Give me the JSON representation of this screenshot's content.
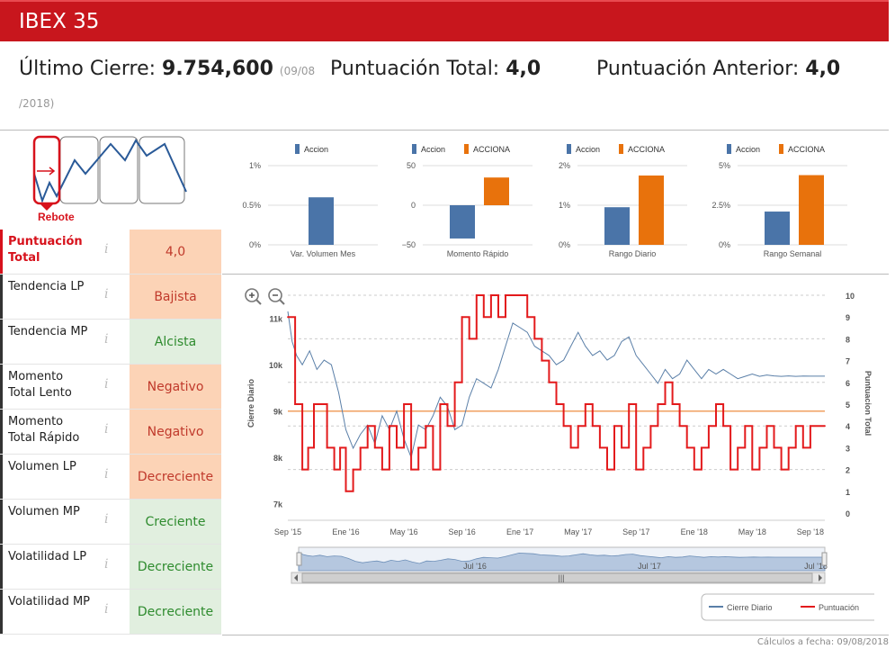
{
  "page": {
    "title": "IBEX 35"
  },
  "header": {
    "ultimo_label": "Último Cierre: ",
    "ultimo_value": "9.754,600",
    "ultimo_date_a": "(09/08",
    "ultimo_date_b": "/2018)",
    "total_label": "Puntuación Total: ",
    "total_value": "4,0",
    "anterior_label": "Puntuación Anterior: ",
    "anterior_value": "4,0"
  },
  "spark": {
    "label": "Rebote"
  },
  "info_icon": "i",
  "criteria": [
    {
      "name": "Puntuación Total",
      "value": "4,0",
      "tone": "bad",
      "highlight": true
    },
    {
      "name": "Tendencia LP",
      "value": "Bajista",
      "tone": "bad"
    },
    {
      "name": "Tendencia MP",
      "value": "Alcista",
      "tone": "good"
    },
    {
      "name": "Momento Total Lento",
      "value": "Negativo",
      "tone": "bad"
    },
    {
      "name": "Momento Total Rápido",
      "value": "Negativo",
      "tone": "bad"
    },
    {
      "name": "Volumen LP",
      "value": "Decreciente",
      "tone": "bad"
    },
    {
      "name": "Volumen MP",
      "value": "Creciente",
      "tone": "good"
    },
    {
      "name": "Volatilidad LP",
      "value": "Decreciente",
      "tone": "good"
    },
    {
      "name": "Volatilidad MP",
      "value": "Decreciente",
      "tone": "good"
    }
  ],
  "footer": {
    "text": "Cálculos a fecha: 09/08/2018"
  },
  "colors": {
    "brand": "#c8161d",
    "accion": "#4a74a8",
    "acciona": "#e8720c",
    "cierre": "#5a7fa8",
    "puntuacion": "#e31a1c",
    "ref_line": "#f0a060"
  },
  "chart_data": [
    {
      "type": "bar",
      "title": "Var. Volumen Mes",
      "series": [
        {
          "name": "Accion",
          "values": [
            0.6
          ]
        }
      ],
      "yticks": [
        "1%",
        "0.5%",
        "0%"
      ],
      "ylim": [
        0,
        1
      ]
    },
    {
      "type": "bar",
      "title": "Momento Rápido",
      "series": [
        {
          "name": "Accion",
          "values": [
            -42
          ]
        },
        {
          "name": "ACCIONA",
          "values": [
            35
          ]
        }
      ],
      "yticks": [
        "50",
        "0",
        "−50"
      ],
      "ylim": [
        -50,
        50
      ]
    },
    {
      "type": "bar",
      "title": "Rango Diario",
      "series": [
        {
          "name": "Accion",
          "values": [
            0.95
          ]
        },
        {
          "name": "ACCIONA",
          "values": [
            1.75
          ]
        }
      ],
      "yticks": [
        "2%",
        "1%",
        "0%"
      ],
      "ylim": [
        0,
        2
      ]
    },
    {
      "type": "bar",
      "title": "Rango Semanal",
      "series": [
        {
          "name": "Accion",
          "values": [
            2.1
          ]
        },
        {
          "name": "ACCIONA",
          "values": [
            4.4
          ]
        }
      ],
      "yticks": [
        "5%",
        "2.5%",
        "0%"
      ],
      "ylim": [
        0,
        5
      ]
    },
    {
      "type": "line",
      "title": "",
      "ylabel": "Cierre Diario",
      "y2label": "Puntuacion Total",
      "ylim": [
        6800,
        11500
      ],
      "y2lim": [
        0,
        10
      ],
      "yticks": [
        "11k",
        "10k",
        "9k",
        "8k",
        "7k"
      ],
      "y2ticks": [
        "10",
        "9",
        "8",
        "7",
        "6",
        "5",
        "4",
        "3",
        "2",
        "1",
        "0"
      ],
      "xticks": [
        "Sep '15",
        "Ene '16",
        "May '16",
        "Sep '16",
        "Ene '17",
        "May '17",
        "Sep '17",
        "Ene '18",
        "May '18",
        "Sep '18"
      ],
      "navigator_labels": [
        "Jul '16",
        "Jul '17",
        "Jul '18"
      ],
      "navigator_grip": "|||",
      "reference_value": 9000,
      "series": [
        {
          "name": "Cierre Diario",
          "axis": "left",
          "x": [
            0,
            0.3,
            0.6,
            1,
            1.5,
            2,
            2.5,
            3,
            3.5,
            4,
            4.5,
            5,
            5.5,
            6,
            6.5,
            7,
            7.5,
            8,
            8.5,
            9,
            9.5,
            10,
            10.5,
            11,
            11.5,
            12,
            12.5,
            13,
            13.5,
            14,
            14.5,
            15,
            15.5,
            16,
            16.5,
            17,
            17.5,
            18,
            18.5,
            19,
            19.5,
            20,
            20.5,
            21,
            21.5,
            22,
            22.5,
            23,
            23.5,
            24,
            24.5,
            25,
            25.5,
            26,
            26.5,
            27,
            27.5,
            28,
            28.5,
            29,
            29.5,
            30,
            30.5,
            31,
            31.5,
            32,
            32.5,
            33,
            33.5,
            34,
            34.5,
            35,
            35.5,
            36,
            37
          ],
          "values": [
            11150,
            10500,
            10200,
            10000,
            10300,
            9900,
            10100,
            10000,
            9400,
            8600,
            8200,
            8500,
            8700,
            8300,
            8900,
            8600,
            9000,
            8400,
            8000,
            8700,
            8600,
            8900,
            9300,
            9100,
            8600,
            8700,
            9300,
            9700,
            9600,
            9500,
            9900,
            10400,
            10900,
            10800,
            10700,
            10400,
            10300,
            10200,
            10000,
            10100,
            10400,
            10700,
            10400,
            10200,
            10300,
            10100,
            10200,
            10500,
            10600,
            10200,
            10000,
            9800,
            9600,
            9900,
            9700,
            9800,
            10100,
            9900,
            9700,
            9900,
            9800,
            9900,
            9800,
            9700,
            9750,
            9800,
            9750,
            9780,
            9760,
            9750,
            9760,
            9750,
            9755,
            9754,
            9754
          ]
        },
        {
          "name": "Puntuación",
          "axis": "right",
          "x": [
            0,
            0.5,
            1,
            1.4,
            1.8,
            2.2,
            2.7,
            3.2,
            3.6,
            4,
            4.5,
            5,
            5.5,
            6,
            6.5,
            7,
            7.5,
            8,
            8.5,
            9,
            9.5,
            10,
            10.5,
            11,
            11.5,
            12,
            12.5,
            13,
            13.5,
            14,
            14.5,
            15,
            15.5,
            16,
            16.5,
            17,
            17.5,
            18,
            18.5,
            19,
            19.5,
            20,
            20.5,
            21,
            21.5,
            22,
            22.5,
            23,
            23.5,
            24,
            24.5,
            25,
            25.5,
            26,
            26.5,
            27,
            27.5,
            28,
            28.5,
            29,
            29.5,
            30,
            30.5,
            31,
            31.5,
            32,
            32.5,
            33,
            33.5,
            34,
            34.5,
            35,
            35.5,
            36,
            37
          ],
          "values": [
            9,
            5,
            2,
            3,
            5,
            5,
            3,
            2,
            3,
            1,
            2,
            3,
            4,
            3,
            2,
            4,
            3,
            5,
            2,
            3,
            4,
            2,
            5,
            4,
            6,
            9,
            8,
            10,
            9,
            10,
            9,
            10,
            10,
            10,
            9,
            8,
            7,
            6,
            5,
            4,
            3,
            4,
            5,
            4,
            3,
            2,
            4,
            3,
            5,
            2,
            3,
            4,
            5,
            6,
            5,
            4,
            3,
            2,
            3,
            4,
            5,
            4,
            2,
            3,
            4,
            2,
            3,
            4,
            3,
            2,
            3,
            4,
            3,
            4,
            4
          ]
        }
      ]
    }
  ],
  "main_legend": [
    "Cierre Diario",
    "Puntuación"
  ]
}
